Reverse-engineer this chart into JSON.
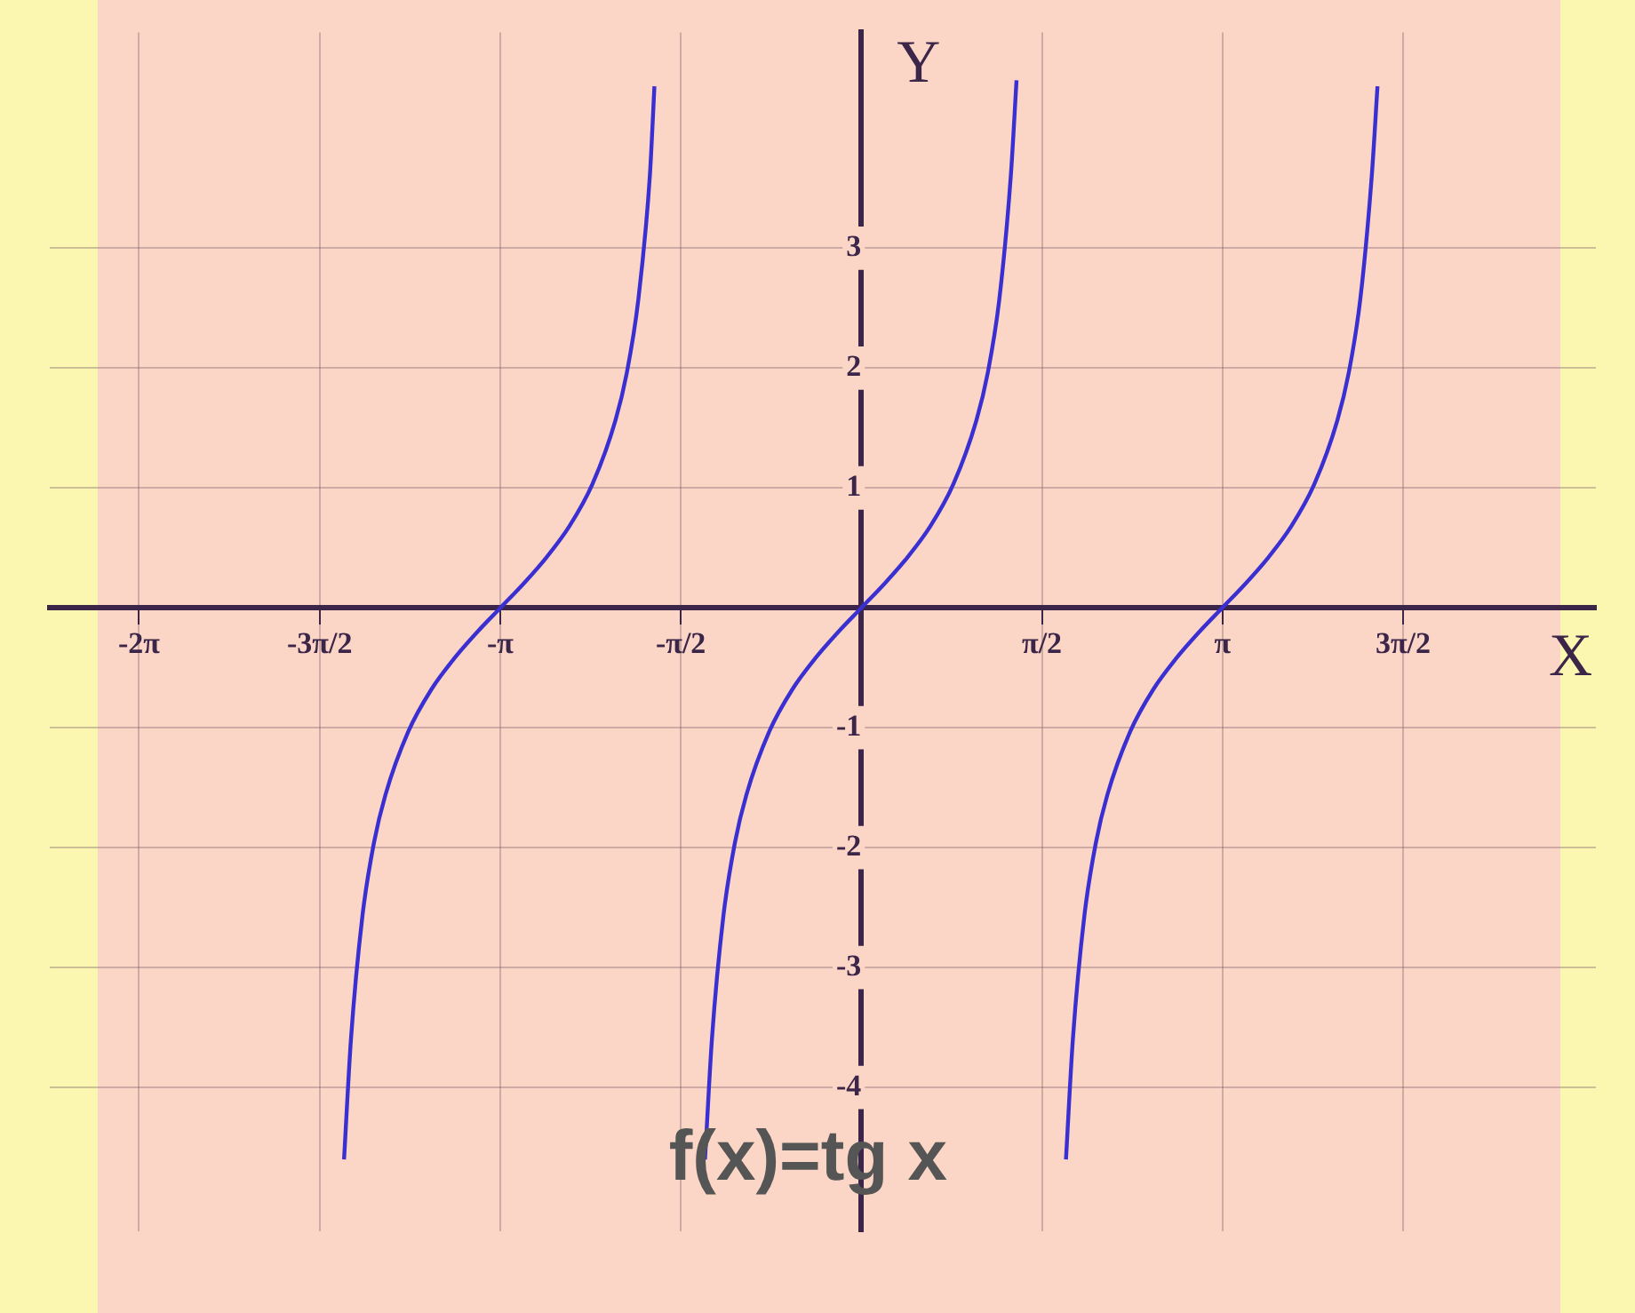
{
  "chart_data": {
    "type": "line",
    "xlabel": "X",
    "ylabel": "Y",
    "xlim": [
      -7.06,
      6.39
    ],
    "ylim": [
      -5.2,
      4.8
    ],
    "xticks": [
      {
        "value": -6.2832,
        "label": "-2π"
      },
      {
        "value": -4.7124,
        "label": "-3π/2"
      },
      {
        "value": -3.1416,
        "label": "-π"
      },
      {
        "value": -1.5708,
        "label": "-π/2"
      },
      {
        "value": 1.5708,
        "label": "π/2"
      },
      {
        "value": 3.1416,
        "label": "π"
      },
      {
        "value": 4.7124,
        "label": "3π/2"
      }
    ],
    "yticks": [
      -4,
      -3,
      -2,
      -1,
      1,
      2,
      3
    ],
    "grid": true,
    "marker": "none",
    "line_style": "solid",
    "annotations": [
      "f(x)=tg x"
    ],
    "series": [
      {
        "color": "#3a2fd0",
        "x": [
          -4.5,
          -4.44,
          -4.34,
          -4.24,
          -4.14,
          -3.94,
          -3.74,
          -3.54,
          -3.34,
          -3.14,
          -2.94,
          -2.74,
          -2.54,
          -2.34,
          -2.14,
          -2.04,
          -1.94,
          -1.84,
          -1.8
        ],
        "values": [
          -4.6,
          -3.6,
          -2.57,
          -1.96,
          -1.56,
          -1.03,
          -0.68,
          -0.42,
          -0.2,
          0,
          0.2,
          0.42,
          0.68,
          1.03,
          1.56,
          1.96,
          2.57,
          3.6,
          4.35
        ]
      },
      {
        "color": "#3a2fd0",
        "x": [
          -1.36,
          -1.3,
          -1.2,
          -1.1,
          -1,
          -0.8,
          -0.6,
          -0.4,
          -0.2,
          0,
          0.2,
          0.4,
          0.6,
          0.8,
          1,
          1.1,
          1.2,
          1.3,
          1.35
        ],
        "values": [
          -4.6,
          -3.6,
          -2.57,
          -1.96,
          -1.56,
          -1.03,
          -0.68,
          -0.42,
          -0.2,
          0,
          0.2,
          0.42,
          0.68,
          1.03,
          1.56,
          1.96,
          2.57,
          3.6,
          4.4
        ]
      },
      {
        "color": "#3a2fd0",
        "x": [
          1.78,
          1.84,
          1.94,
          2.04,
          2.14,
          2.34,
          2.54,
          2.74,
          2.94,
          3.14,
          3.34,
          3.54,
          3.74,
          3.94,
          4.14,
          4.24,
          4.34,
          4.44,
          4.49
        ],
        "values": [
          -4.6,
          -3.6,
          -2.57,
          -1.96,
          -1.56,
          -1.03,
          -0.68,
          -0.42,
          -0.2,
          0,
          0.2,
          0.42,
          0.68,
          1.03,
          1.56,
          1.96,
          2.57,
          3.6,
          4.35
        ]
      }
    ]
  }
}
